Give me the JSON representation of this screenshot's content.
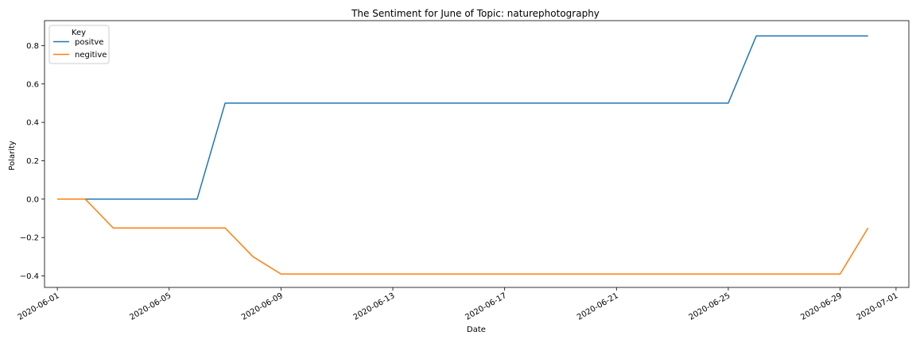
{
  "chart_data": {
    "type": "line",
    "title": "The Sentiment for June of Topic: naturephotography",
    "xlabel": "Date",
    "ylabel": "Polarity",
    "x_type": "date",
    "xlim": [
      "2020-05-31T13:00",
      "2020-07-01T11:00"
    ],
    "ylim": [
      -0.46,
      0.93
    ],
    "x_ticks": [
      "2020-06-01",
      "2020-06-05",
      "2020-06-09",
      "2020-06-13",
      "2020-06-17",
      "2020-06-21",
      "2020-06-25",
      "2020-06-29",
      "2020-07-01"
    ],
    "y_ticks": [
      -0.4,
      -0.2,
      0.0,
      0.2,
      0.4,
      0.6,
      0.8
    ],
    "y_tick_labels": [
      "−0.4",
      "−0.2",
      "0.0",
      "0.2",
      "0.4",
      "0.6",
      "0.8"
    ],
    "legend": {
      "title": "Key",
      "position": "top-left"
    },
    "grid": false,
    "series": [
      {
        "name": "positve",
        "color": "#1f77b4",
        "points": [
          [
            "2020-06-01",
            0.0
          ],
          [
            "2020-06-06",
            0.0
          ],
          [
            "2020-06-07",
            0.5
          ],
          [
            "2020-06-25",
            0.5
          ],
          [
            "2020-06-26",
            0.85
          ],
          [
            "2020-06-30",
            0.85
          ]
        ]
      },
      {
        "name": "negitive",
        "color": "#ff7f0e",
        "points": [
          [
            "2020-06-01",
            0.0
          ],
          [
            "2020-06-02",
            0.0
          ],
          [
            "2020-06-03",
            -0.15
          ],
          [
            "2020-06-07",
            -0.15
          ],
          [
            "2020-06-08",
            -0.3
          ],
          [
            "2020-06-09",
            -0.39
          ],
          [
            "2020-06-29",
            -0.39
          ],
          [
            "2020-06-30",
            -0.15
          ]
        ]
      }
    ]
  }
}
